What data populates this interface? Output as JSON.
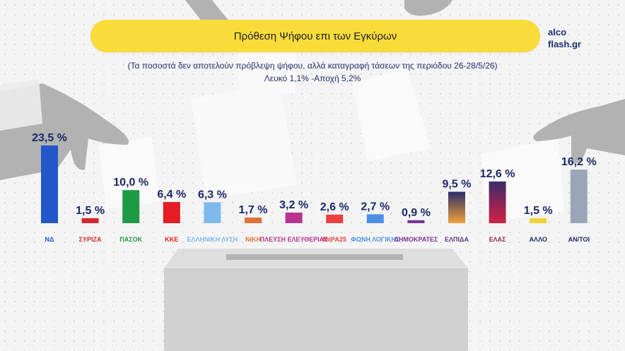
{
  "header": {
    "title": "Πρόθεση Ψήφου επι των Εγκύρων",
    "brand_line1": "alco",
    "brand_line2": "flash.gr",
    "subtitle": "(Τα ποσοστά δεν αποτελούν πρόβλεψη ψήφου, αλλά καταγραφή τάσεων της περιόδου 26-28/5/26)",
    "note": "Λευκό 1,1% -Αποχή 5,2%"
  },
  "chart_data": {
    "type": "bar",
    "title": "Πρόθεση Ψήφου επι των Εγκύρων",
    "ylim": [
      0,
      25
    ],
    "grid": false,
    "value_labels": [
      "23,5 %",
      "1,5 %",
      "10,0 %",
      "6,4 %",
      "6,3 %",
      "1,7 %",
      "3,2 %",
      "2,6 %",
      "2,7 %",
      "0,9 %",
      "9,5 %",
      "12,6 %",
      "1,5 %",
      "16,2 %"
    ],
    "categories": [
      "ΝΔ",
      "ΣΥΡΙΖΑ",
      "ΠΑΣΟΚ",
      "ΚΚΕ",
      "ΕΛΛΗΝΙΚΗ ΛΥΣΗ",
      "ΝΙΚΗ",
      "ΠΛΕΥΣΗ ΕΛΕΥΘΕΡΙΑΣ",
      "ΜέΡΑ25",
      "ΦΩΝΗ ΛΟΓΙΚΗΣ",
      "ΔΗΜΟΚΡΑΤΕΣ",
      "ΕΛΠΙΔΑ",
      "ΕΛΑΣ",
      "ΑΛΛΟ",
      "ΑΝ/ΤΟΙ"
    ],
    "tick_labels": [
      "ΝΔ",
      "ΣΥΡΙΖΑ",
      "ΠΑΣΟΚ",
      "ΚΚΕ",
      "ΕΛΛΗΝΙΚΗ ΛΥΣΗ",
      "ΝΙΚΗ",
      "ΠΛΕΥΣΗ ΕΛΕΥΘΕΡΙΑΣ",
      "ΜέΡΑ25",
      "ΦΩΝΗ ΛΟΓΙΚΗΣ",
      "ΔΗΜΟΚΡΑΤΕΣ",
      "ΕΛΠΙΔΑ",
      "ΕΛΑΣ",
      "ΑΛΛΟ",
      "ΑΝ/ΤΟΙ"
    ],
    "values": [
      23.5,
      1.5,
      10.0,
      6.4,
      6.3,
      1.7,
      3.2,
      2.6,
      2.7,
      0.9,
      9.5,
      12.6,
      1.5,
      16.2
    ],
    "colors": [
      "#2257c9",
      "#d8262d",
      "#1e9a45",
      "#e31d23",
      "#7fb8ea",
      "#e0703a",
      "#b8338f",
      "#e8413e",
      "#4d8fe6",
      "#7a3591",
      "#5a3a7a",
      "#8a2a4a",
      "#f4d23a",
      "#9aa6b8"
    ],
    "gradients": {
      "10": [
        "#2d2a6a",
        "#f0a43a"
      ],
      "11": [
        "#3a2a6a",
        "#d62146"
      ]
    }
  }
}
